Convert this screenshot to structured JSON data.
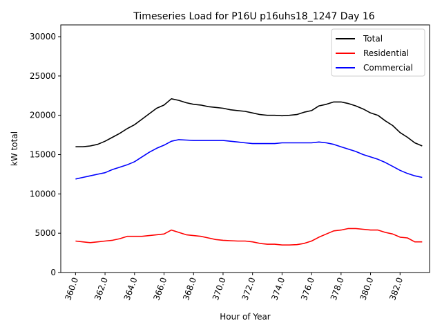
{
  "chart_data": {
    "type": "line",
    "title": "Timeseries Load for P16U p16uhs18_1247  Day 16",
    "xlabel": "Hour of Year",
    "ylabel": "kW total",
    "xlim": [
      359.0,
      384.0
    ],
    "ylim": [
      0,
      31500
    ],
    "x_ticks": [
      360,
      362,
      364,
      366,
      368,
      370,
      372,
      374,
      376,
      378,
      380,
      382
    ],
    "x_tick_labels": [
      "360.0",
      "362.0",
      "364.0",
      "366.0",
      "368.0",
      "370.0",
      "372.0",
      "374.0",
      "376.0",
      "378.0",
      "380.0",
      "382.0"
    ],
    "y_ticks": [
      0,
      5000,
      10000,
      15000,
      20000,
      25000,
      30000
    ],
    "y_tick_labels": [
      "0",
      "5000",
      "10000",
      "15000",
      "20000",
      "25000",
      "30000"
    ],
    "grid": false,
    "legend_position": "top-right",
    "x": [
      360.0,
      360.5,
      361.0,
      361.5,
      362.0,
      362.5,
      363.0,
      363.5,
      364.0,
      364.5,
      365.0,
      365.5,
      366.0,
      366.5,
      367.0,
      367.5,
      368.0,
      368.5,
      369.0,
      369.5,
      370.0,
      370.5,
      371.0,
      371.5,
      372.0,
      372.5,
      373.0,
      373.5,
      374.0,
      374.5,
      375.0,
      375.5,
      376.0,
      376.5,
      377.0,
      377.5,
      378.0,
      378.5,
      379.0,
      379.5,
      380.0,
      380.5,
      381.0,
      381.5,
      382.0,
      382.5,
      383.0,
      383.5
    ],
    "series": [
      {
        "name": "Total",
        "color": "#000000",
        "values": [
          16000,
          16000,
          16100,
          16300,
          16700,
          17200,
          17700,
          18300,
          18800,
          19500,
          20200,
          20900,
          21300,
          22100,
          21900,
          21600,
          21400,
          21300,
          21100,
          21000,
          20900,
          20700,
          20600,
          20500,
          20300,
          20100,
          20000,
          20000,
          19950,
          20000,
          20100,
          20400,
          20600,
          21200,
          21400,
          21700,
          21700,
          21500,
          21200,
          20800,
          20300,
          20000,
          19300,
          18700,
          17800,
          17200,
          16500,
          16100
        ]
      },
      {
        "name": "Residential",
        "color": "#ff0000",
        "values": [
          4000,
          3900,
          3800,
          3900,
          4000,
          4100,
          4300,
          4600,
          4600,
          4600,
          4700,
          4800,
          4900,
          5400,
          5100,
          4800,
          4700,
          4600,
          4400,
          4200,
          4100,
          4050,
          4000,
          4000,
          3900,
          3700,
          3600,
          3600,
          3500,
          3500,
          3550,
          3700,
          4000,
          4500,
          4900,
          5300,
          5400,
          5600,
          5600,
          5500,
          5400,
          5400,
          5100,
          4900,
          4500,
          4400,
          3900,
          3900
        ]
      },
      {
        "name": "Commercial",
        "color": "#0000ff",
        "values": [
          11900,
          12100,
          12300,
          12500,
          12700,
          13100,
          13400,
          13700,
          14100,
          14700,
          15300,
          15800,
          16200,
          16700,
          16900,
          16850,
          16800,
          16800,
          16800,
          16800,
          16800,
          16700,
          16600,
          16500,
          16400,
          16400,
          16400,
          16400,
          16500,
          16500,
          16500,
          16500,
          16500,
          16600,
          16500,
          16300,
          16000,
          15700,
          15400,
          15000,
          14700,
          14400,
          14000,
          13500,
          13000,
          12600,
          12300,
          12100
        ]
      }
    ]
  }
}
